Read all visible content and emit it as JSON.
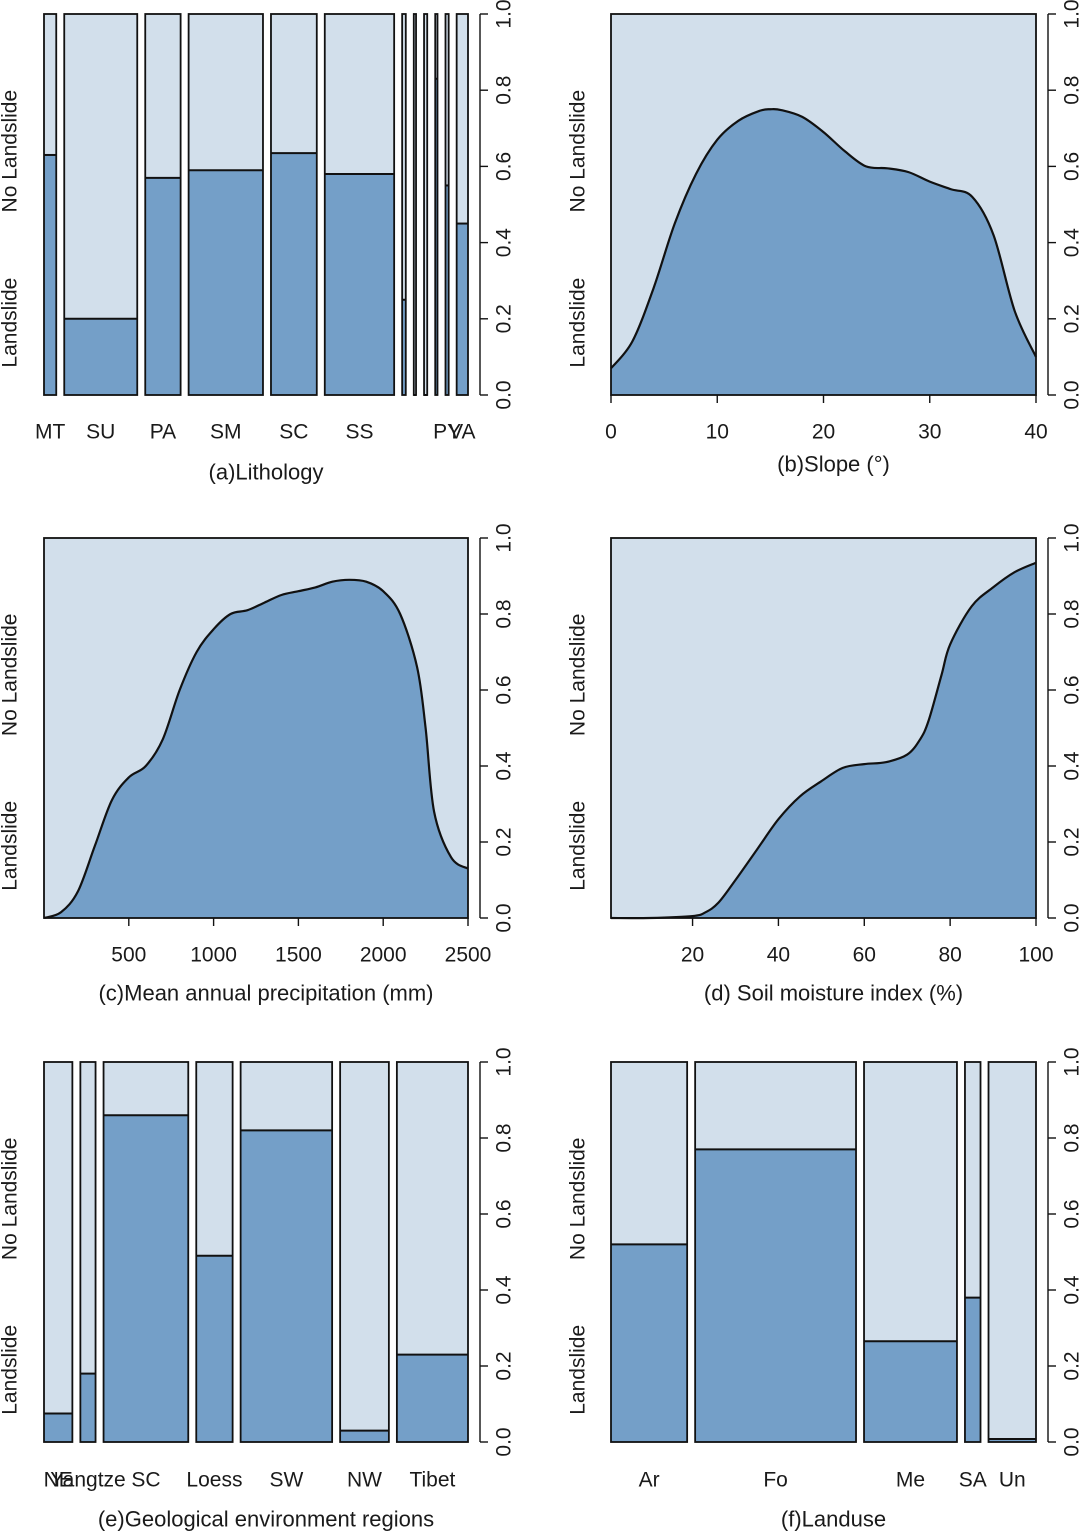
{
  "colors": {
    "landslide": "#749fc8",
    "no_landslide": "#d2dfeb",
    "stroke": "#111111"
  },
  "labels": {
    "landslide": "Landslide",
    "no_landslide": "No Landslide"
  },
  "chart_data": [
    {
      "id": "a",
      "type": "spineplot",
      "title": "(a)Lithology",
      "categories": [
        "MT",
        "SU",
        "PA",
        "SM",
        "SC",
        "SS",
        "",
        "",
        "",
        "",
        "PY",
        "VA"
      ],
      "widths": [
        0.027,
        0.161,
        0.078,
        0.164,
        0.101,
        0.153,
        0.008,
        0.005,
        0.007,
        0.005,
        0.007,
        0.025
      ],
      "values": [
        0.63,
        0.2,
        0.57,
        0.59,
        0.635,
        0.58,
        0.25,
        0.0,
        0.0,
        0.83,
        0.55,
        0.45
      ],
      "y_ticks": [
        "0.0",
        "0.2",
        "0.4",
        "0.6",
        "0.8",
        "1.0"
      ],
      "ylim": [
        0,
        1
      ]
    },
    {
      "id": "b",
      "type": "area",
      "title": "(b)Slope (°)",
      "xlim": [
        0,
        40
      ],
      "x_ticks": [
        "0",
        "10",
        "20",
        "30",
        "40"
      ],
      "x": [
        0,
        2,
        4,
        6,
        8,
        10,
        12,
        14,
        15,
        16,
        18,
        20,
        22,
        24,
        26,
        28,
        30,
        32,
        34,
        36,
        38,
        40
      ],
      "values": [
        0.07,
        0.14,
        0.28,
        0.45,
        0.58,
        0.67,
        0.72,
        0.746,
        0.75,
        0.748,
        0.73,
        0.69,
        0.64,
        0.6,
        0.595,
        0.585,
        0.56,
        0.54,
        0.52,
        0.42,
        0.22,
        0.1
      ],
      "y_ticks": [
        "0.0",
        "0.2",
        "0.4",
        "0.6",
        "0.8",
        "1.0"
      ],
      "ylim": [
        0,
        1
      ]
    },
    {
      "id": "c",
      "type": "area",
      "title": "(c)Mean annual precipitation (mm)",
      "xlim": [
        0,
        2500
      ],
      "x_ticks": [
        "500",
        "1000",
        "1500",
        "2000",
        "2500"
      ],
      "x": [
        0,
        100,
        200,
        300,
        400,
        500,
        600,
        700,
        800,
        900,
        1000,
        1100,
        1200,
        1300,
        1400,
        1500,
        1600,
        1700,
        1800,
        1900,
        2000,
        2100,
        2200,
        2250,
        2300,
        2400,
        2500
      ],
      "values": [
        0.0,
        0.015,
        0.07,
        0.19,
        0.31,
        0.37,
        0.4,
        0.47,
        0.6,
        0.7,
        0.76,
        0.8,
        0.81,
        0.83,
        0.85,
        0.86,
        0.87,
        0.885,
        0.89,
        0.885,
        0.86,
        0.8,
        0.66,
        0.5,
        0.28,
        0.16,
        0.13
      ],
      "y_ticks": [
        "0.0",
        "0.2",
        "0.4",
        "0.6",
        "0.8",
        "1.0"
      ],
      "ylim": [
        0,
        1
      ]
    },
    {
      "id": "d",
      "type": "area",
      "title": "(d) Soil moisture index (%)",
      "xlim": [
        1,
        100
      ],
      "x_ticks": [
        "20",
        "40",
        "60",
        "80",
        "100"
      ],
      "x": [
        1,
        10,
        20,
        23,
        26,
        30,
        35,
        40,
        45,
        50,
        55,
        60,
        65,
        70,
        73,
        75,
        78,
        80,
        85,
        90,
        95,
        100
      ],
      "values": [
        0.0,
        0.0,
        0.005,
        0.015,
        0.04,
        0.1,
        0.18,
        0.26,
        0.32,
        0.36,
        0.395,
        0.405,
        0.41,
        0.43,
        0.47,
        0.52,
        0.64,
        0.72,
        0.82,
        0.87,
        0.91,
        0.935
      ],
      "y_ticks": [
        "0.0",
        "0.2",
        "0.4",
        "0.6",
        "0.8",
        "1.0"
      ],
      "ylim": [
        0,
        1
      ]
    },
    {
      "id": "e",
      "type": "spineplot",
      "title": "(e)Geological environment regions",
      "categories": [
        "NE",
        "Yangtze",
        "SC",
        "Loess",
        "SW",
        "NW",
        "Tibet"
      ],
      "widths": [
        0.071,
        0.038,
        0.212,
        0.091,
        0.229,
        0.122,
        0.178
      ],
      "values": [
        0.075,
        0.18,
        0.86,
        0.49,
        0.82,
        0.03,
        0.23
      ],
      "y_ticks": [
        "0.0",
        "0.2",
        "0.4",
        "0.6",
        "0.8",
        "1.0"
      ],
      "ylim": [
        0,
        1
      ]
    },
    {
      "id": "f",
      "type": "spineplot",
      "title": "(f)Landuse",
      "categories": [
        "Ar",
        "Fo",
        "Me",
        "SA",
        "Un"
      ],
      "widths": [
        0.186,
        0.393,
        0.227,
        0.038,
        0.116
      ],
      "values": [
        0.52,
        0.77,
        0.265,
        0.38,
        0.008
      ],
      "y_ticks": [
        "0.0",
        "0.2",
        "0.4",
        "0.6",
        "0.8",
        "1.0"
      ],
      "ylim": [
        0,
        1
      ]
    }
  ]
}
